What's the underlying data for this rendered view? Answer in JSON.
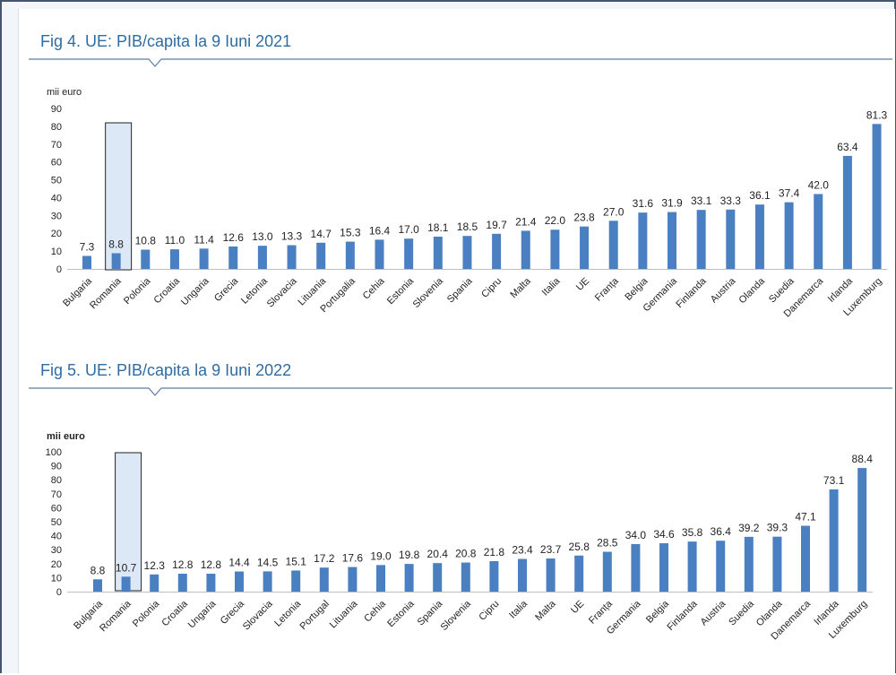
{
  "figures": [
    {
      "title": "Fig 4. UE: PIB/capita la 9 Iuni 2021",
      "chart_data": {
        "type": "bar",
        "ylabel": "mii euro",
        "ylim": [
          0,
          90
        ],
        "yticks": [
          0,
          10,
          20,
          30,
          40,
          50,
          60,
          70,
          80,
          90
        ],
        "categories": [
          "Bulgaria",
          "Romania",
          "Polonia",
          "Croatia",
          "Ungaria",
          "Grecia",
          "Letonia",
          "Slovacia",
          "Lituania",
          "Portugalia",
          "Cehia",
          "Estonia",
          "Slovenia",
          "Spania",
          "Cipru",
          "Malta",
          "Italia",
          "UE",
          "Franța",
          "Belgia",
          "Germania",
          "Finlanda",
          "Austria",
          "Olanda",
          "Suedia",
          "Danemarca",
          "Irlanda",
          "Luxemburg"
        ],
        "values": [
          7.3,
          8.8,
          10.8,
          11.0,
          11.4,
          12.6,
          13.0,
          13.3,
          14.7,
          15.3,
          16.4,
          17.0,
          18.1,
          18.5,
          19.7,
          21.4,
          22.0,
          23.8,
          27.0,
          31.6,
          31.9,
          33.1,
          33.3,
          36.1,
          37.4,
          42.0,
          63.4,
          81.3
        ],
        "value_labels": [
          "7.3",
          "8.8",
          "10.8",
          "11.0",
          "11.4",
          "12.6",
          "13.0",
          "13.3",
          "14.7",
          "15.3",
          "16.4",
          "17.0",
          "18.1",
          "18.5",
          "19.7",
          "21.4",
          "22.0",
          "23.8",
          "27.0",
          "31.6",
          "31.9",
          "33.1",
          "33.3",
          "36.1",
          "37.4",
          "42.0",
          "63.4",
          "81.3"
        ],
        "highlight": "Romania",
        "bar_color": "#4a7fc1",
        "ylabel_bold": false
      }
    },
    {
      "title": "Fig 5. UE: PIB/capita la 9 Iuni 2022",
      "chart_data": {
        "type": "bar",
        "ylabel": "mii euro",
        "ylim": [
          0,
          100
        ],
        "yticks": [
          0,
          10,
          20,
          30,
          40,
          50,
          60,
          70,
          80,
          90,
          100
        ],
        "categories": [
          "Bulgaria",
          "Romania",
          "Polonia",
          "Croatia",
          "Ungaria",
          "Grecia",
          "Slovacia",
          "Letonia",
          "Portugal",
          "Lituania",
          "Cehia",
          "Estonia",
          "Spania",
          "Slovenia",
          "Cipru",
          "Italia",
          "Malta",
          "UE",
          "Franța",
          "Germania",
          "Belgia",
          "Finlanda",
          "Austria",
          "Suedia",
          "Olanda",
          "Danemarca",
          "Irlanda",
          "Luxemburg"
        ],
        "values": [
          8.8,
          10.7,
          12.3,
          12.8,
          12.8,
          14.4,
          14.5,
          15.1,
          17.2,
          17.6,
          19.0,
          19.8,
          20.4,
          20.8,
          21.8,
          23.4,
          23.7,
          25.8,
          28.5,
          34.0,
          34.6,
          35.8,
          36.4,
          39.2,
          39.3,
          47.1,
          73.1,
          88.4
        ],
        "value_labels": [
          "8.8",
          "10.7",
          "12.3",
          "12.8",
          "12.8",
          "14.4",
          "14.5",
          "15.1",
          "17.2",
          "17.6",
          "19.0",
          "19.8",
          "20.4",
          "20.8",
          "21.8",
          "23.4",
          "23.7",
          "25.8",
          "28.5",
          "34.0",
          "34.6",
          "35.8",
          "36.4",
          "39.2",
          "39.3",
          "47.1",
          "73.1",
          "88.4"
        ],
        "highlight": "Romania",
        "bar_color": "#4a7fc1",
        "ylabel_bold": true
      }
    }
  ]
}
